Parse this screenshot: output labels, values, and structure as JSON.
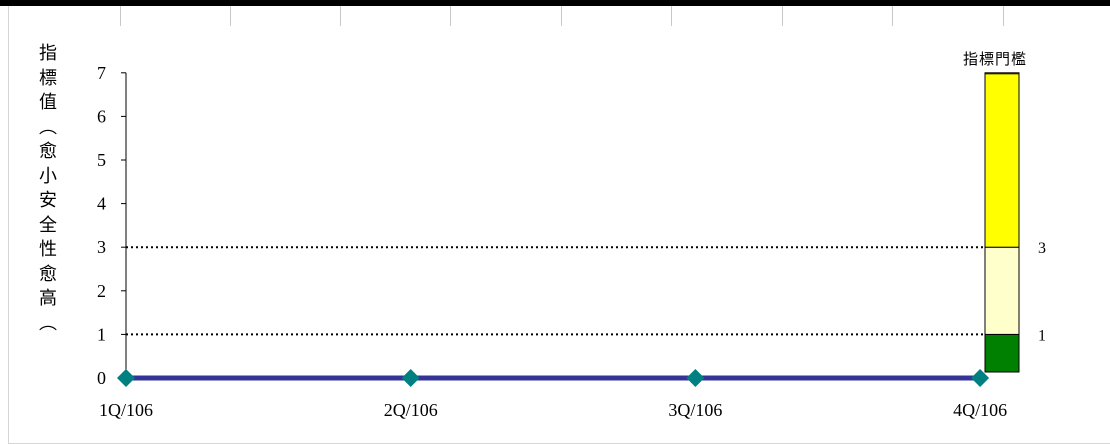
{
  "chart_data": {
    "type": "line",
    "categories": [
      "1Q/106",
      "2Q/106",
      "3Q/106",
      "4Q/106"
    ],
    "series": [
      {
        "values": [
          0,
          0,
          0,
          0
        ]
      }
    ],
    "ylim": [
      0,
      7
    ],
    "yticks": [
      "0",
      "1",
      "2",
      "3",
      "4",
      "5",
      "6",
      "7"
    ],
    "ylabel": "指標值︵愈小安全性愈高︵",
    "thresholds": [
      1,
      3
    ],
    "threshold_labels": [
      "1",
      "3"
    ],
    "legend_title": "指標門檻",
    "threshold_bands": [
      {
        "from": 0,
        "to": 1,
        "color": "#008000"
      },
      {
        "from": 1,
        "to": 3,
        "color": "#FFFFCC"
      },
      {
        "from": 3,
        "to": 7,
        "color": "#FFFF00"
      }
    ],
    "series_color": "#333399",
    "marker_color": "#008080",
    "grid": false
  }
}
